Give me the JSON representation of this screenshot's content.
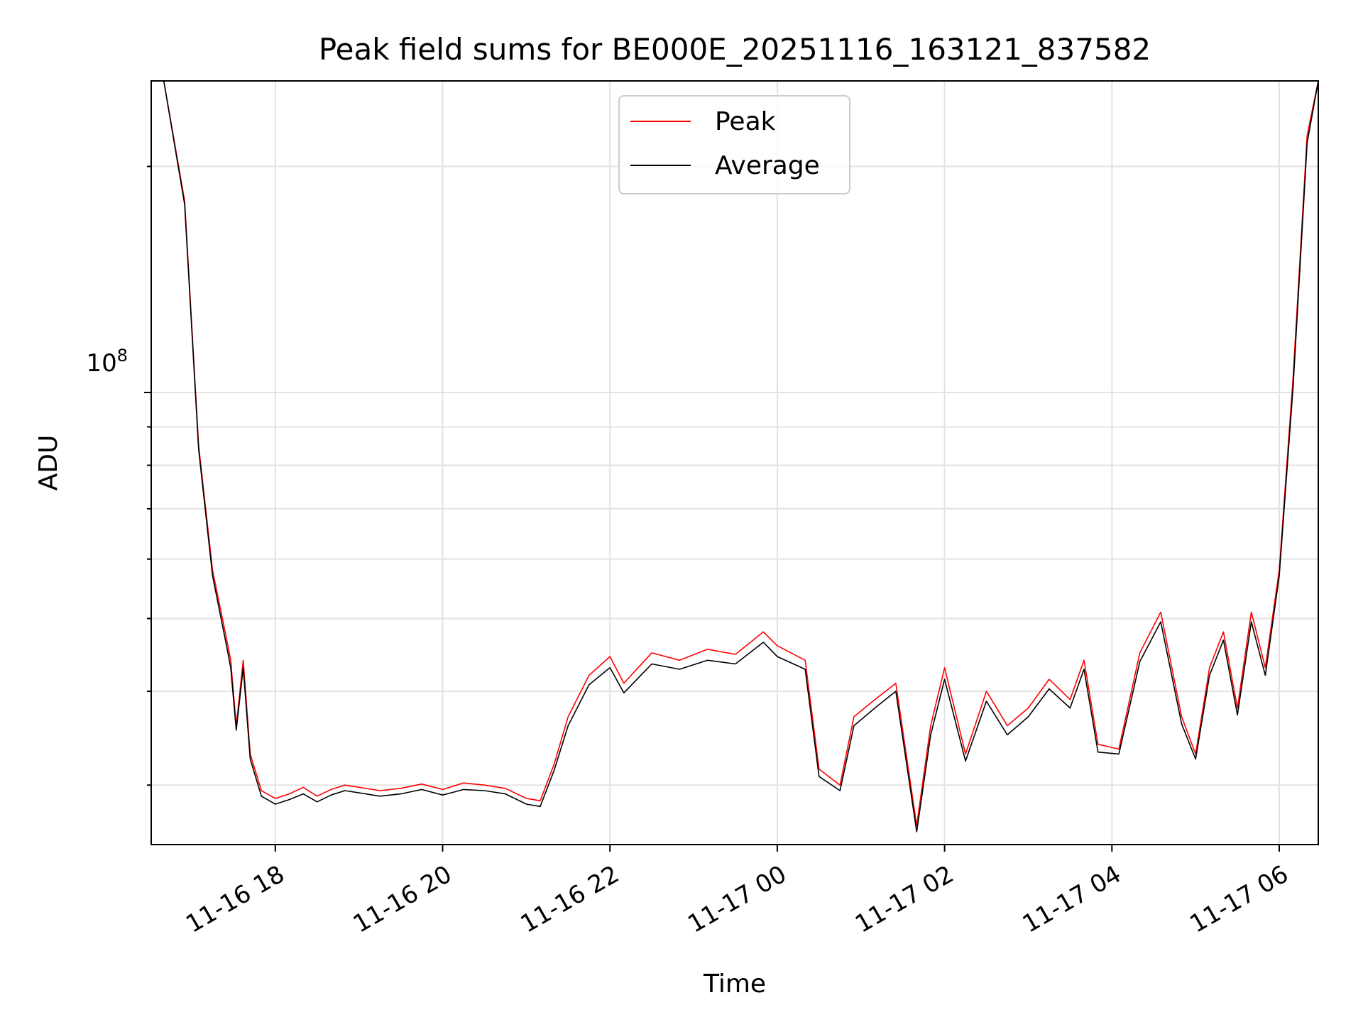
{
  "chart_data": {
    "type": "line",
    "title": "Peak field sums for BE000E_20251116_163121_837582",
    "xlabel": "Time",
    "ylabel": "ADU",
    "yscale": "log",
    "x_range": [
      "2025-11-16 16:31",
      "2025-11-17 06:28"
    ],
    "ylim": [
      25000000,
      260000000
    ],
    "x_ticks": [
      "11-16 18",
      "11-16 20",
      "11-16 22",
      "11-17 00",
      "11-17 02",
      "11-17 04",
      "11-17 06"
    ],
    "y_tick_major": {
      "value": 100000000,
      "base": "10",
      "exponent": "8"
    },
    "grid": true,
    "legend_position": "upper center",
    "legend": [
      "Peak",
      "Average"
    ],
    "colors": {
      "peak": "#ff0000",
      "average": "#000000"
    },
    "series": [
      {
        "name": "Peak",
        "color": "#ff0000",
        "points": [
          [
            "2025-11-16 16:40",
            260000000
          ],
          [
            "2025-11-16 16:55",
            180000000
          ],
          [
            "2025-11-16 17:05",
            85000000
          ],
          [
            "2025-11-16 17:15",
            58000000
          ],
          [
            "2025-11-16 17:25",
            47000000
          ],
          [
            "2025-11-16 17:28",
            44000000
          ],
          [
            "2025-11-16 17:32",
            36000000
          ],
          [
            "2025-11-16 17:37",
            44000000
          ],
          [
            "2025-11-16 17:42",
            33000000
          ],
          [
            "2025-11-16 17:50",
            29500000
          ],
          [
            "2025-11-16 18:00",
            28800000
          ],
          [
            "2025-11-16 18:10",
            29200000
          ],
          [
            "2025-11-16 18:20",
            29800000
          ],
          [
            "2025-11-16 18:30",
            29000000
          ],
          [
            "2025-11-16 18:40",
            29600000
          ],
          [
            "2025-11-16 18:50",
            30000000
          ],
          [
            "2025-11-16 19:00",
            29800000
          ],
          [
            "2025-11-16 19:15",
            29500000
          ],
          [
            "2025-11-16 19:30",
            29700000
          ],
          [
            "2025-11-16 19:45",
            30100000
          ],
          [
            "2025-11-16 20:00",
            29600000
          ],
          [
            "2025-11-16 20:15",
            30200000
          ],
          [
            "2025-11-16 20:30",
            30000000
          ],
          [
            "2025-11-16 20:45",
            29700000
          ],
          [
            "2025-11-16 21:00",
            28800000
          ],
          [
            "2025-11-16 21:10",
            28600000
          ],
          [
            "2025-11-16 21:20",
            32000000
          ],
          [
            "2025-11-16 21:30",
            37000000
          ],
          [
            "2025-11-16 21:45",
            42000000
          ],
          [
            "2025-11-16 22:00",
            44500000
          ],
          [
            "2025-11-16 22:10",
            41000000
          ],
          [
            "2025-11-16 22:30",
            45000000
          ],
          [
            "2025-11-16 22:50",
            44000000
          ],
          [
            "2025-11-16 23:10",
            45500000
          ],
          [
            "2025-11-16 23:30",
            44800000
          ],
          [
            "2025-11-16 23:50",
            48000000
          ],
          [
            "2025-11-17 00:00",
            46000000
          ],
          [
            "2025-11-17 00:20",
            44000000
          ],
          [
            "2025-11-17 00:30",
            31500000
          ],
          [
            "2025-11-17 00:45",
            30000000
          ],
          [
            "2025-11-17 00:55",
            37000000
          ],
          [
            "2025-11-17 01:10",
            39000000
          ],
          [
            "2025-11-17 01:25",
            41000000
          ],
          [
            "2025-11-17 01:40",
            26500000
          ],
          [
            "2025-11-17 01:50",
            36000000
          ],
          [
            "2025-11-17 02:00",
            43000000
          ],
          [
            "2025-11-17 02:15",
            33000000
          ],
          [
            "2025-11-17 02:30",
            40000000
          ],
          [
            "2025-11-17 02:45",
            36000000
          ],
          [
            "2025-11-17 03:00",
            38000000
          ],
          [
            "2025-11-17 03:15",
            41500000
          ],
          [
            "2025-11-17 03:30",
            39000000
          ],
          [
            "2025-11-17 03:40",
            44000000
          ],
          [
            "2025-11-17 03:50",
            34000000
          ],
          [
            "2025-11-17 04:05",
            33500000
          ],
          [
            "2025-11-17 04:20",
            45000000
          ],
          [
            "2025-11-17 04:35",
            51000000
          ],
          [
            "2025-11-17 04:50",
            37000000
          ],
          [
            "2025-11-17 05:00",
            33000000
          ],
          [
            "2025-11-17 05:10",
            43000000
          ],
          [
            "2025-11-17 05:20",
            48000000
          ],
          [
            "2025-11-17 05:30",
            38000000
          ],
          [
            "2025-11-17 05:40",
            51000000
          ],
          [
            "2025-11-17 05:50",
            43000000
          ],
          [
            "2025-11-17 06:00",
            58000000
          ],
          [
            "2025-11-17 06:10",
            105000000
          ],
          [
            "2025-11-17 06:20",
            220000000
          ],
          [
            "2025-11-17 06:28",
            260000000
          ]
        ]
      },
      {
        "name": "Average",
        "color": "#000000",
        "points": [
          [
            "2025-11-16 16:40",
            260000000
          ],
          [
            "2025-11-16 16:55",
            178000000
          ],
          [
            "2025-11-16 17:05",
            84000000
          ],
          [
            "2025-11-16 17:15",
            57000000
          ],
          [
            "2025-11-16 17:25",
            46000000
          ],
          [
            "2025-11-16 17:28",
            43000000
          ],
          [
            "2025-11-16 17:32",
            35500000
          ],
          [
            "2025-11-16 17:37",
            43000000
          ],
          [
            "2025-11-16 17:42",
            32500000
          ],
          [
            "2025-11-16 17:50",
            29000000
          ],
          [
            "2025-11-16 18:00",
            28300000
          ],
          [
            "2025-11-16 18:10",
            28700000
          ],
          [
            "2025-11-16 18:20",
            29200000
          ],
          [
            "2025-11-16 18:30",
            28500000
          ],
          [
            "2025-11-16 18:40",
            29100000
          ],
          [
            "2025-11-16 18:50",
            29500000
          ],
          [
            "2025-11-16 19:00",
            29300000
          ],
          [
            "2025-11-16 19:15",
            29000000
          ],
          [
            "2025-11-16 19:30",
            29200000
          ],
          [
            "2025-11-16 19:45",
            29600000
          ],
          [
            "2025-11-16 20:00",
            29100000
          ],
          [
            "2025-11-16 20:15",
            29600000
          ],
          [
            "2025-11-16 20:30",
            29500000
          ],
          [
            "2025-11-16 20:45",
            29200000
          ],
          [
            "2025-11-16 21:00",
            28300000
          ],
          [
            "2025-11-16 21:10",
            28100000
          ],
          [
            "2025-11-16 21:20",
            31400000
          ],
          [
            "2025-11-16 21:30",
            36000000
          ],
          [
            "2025-11-16 21:45",
            40800000
          ],
          [
            "2025-11-16 22:00",
            43000000
          ],
          [
            "2025-11-16 22:10",
            39800000
          ],
          [
            "2025-11-16 22:30",
            43500000
          ],
          [
            "2025-11-16 22:50",
            42800000
          ],
          [
            "2025-11-16 23:10",
            44000000
          ],
          [
            "2025-11-16 23:30",
            43500000
          ],
          [
            "2025-11-16 23:50",
            46500000
          ],
          [
            "2025-11-17 00:00",
            44500000
          ],
          [
            "2025-11-17 00:20",
            42800000
          ],
          [
            "2025-11-17 00:30",
            30800000
          ],
          [
            "2025-11-17 00:45",
            29500000
          ],
          [
            "2025-11-17 00:55",
            36000000
          ],
          [
            "2025-11-17 01:10",
            38000000
          ],
          [
            "2025-11-17 01:25",
            40000000
          ],
          [
            "2025-11-17 01:40",
            26000000
          ],
          [
            "2025-11-17 01:50",
            35000000
          ],
          [
            "2025-11-17 02:00",
            41500000
          ],
          [
            "2025-11-17 02:15",
            32300000
          ],
          [
            "2025-11-17 02:30",
            38800000
          ],
          [
            "2025-11-17 02:45",
            35000000
          ],
          [
            "2025-11-17 03:00",
            37000000
          ],
          [
            "2025-11-17 03:15",
            40300000
          ],
          [
            "2025-11-17 03:30",
            38000000
          ],
          [
            "2025-11-17 03:40",
            42800000
          ],
          [
            "2025-11-17 03:50",
            33200000
          ],
          [
            "2025-11-17 04:05",
            33000000
          ],
          [
            "2025-11-17 04:20",
            43800000
          ],
          [
            "2025-11-17 04:35",
            49500000
          ],
          [
            "2025-11-17 04:50",
            36200000
          ],
          [
            "2025-11-17 05:00",
            32500000
          ],
          [
            "2025-11-17 05:10",
            42000000
          ],
          [
            "2025-11-17 05:20",
            46800000
          ],
          [
            "2025-11-17 05:30",
            37200000
          ],
          [
            "2025-11-17 05:40",
            49500000
          ],
          [
            "2025-11-17 05:50",
            42000000
          ],
          [
            "2025-11-17 06:00",
            57000000
          ],
          [
            "2025-11-17 06:10",
            102000000
          ],
          [
            "2025-11-17 06:20",
            215000000
          ],
          [
            "2025-11-17 06:28",
            260000000
          ]
        ]
      }
    ]
  }
}
